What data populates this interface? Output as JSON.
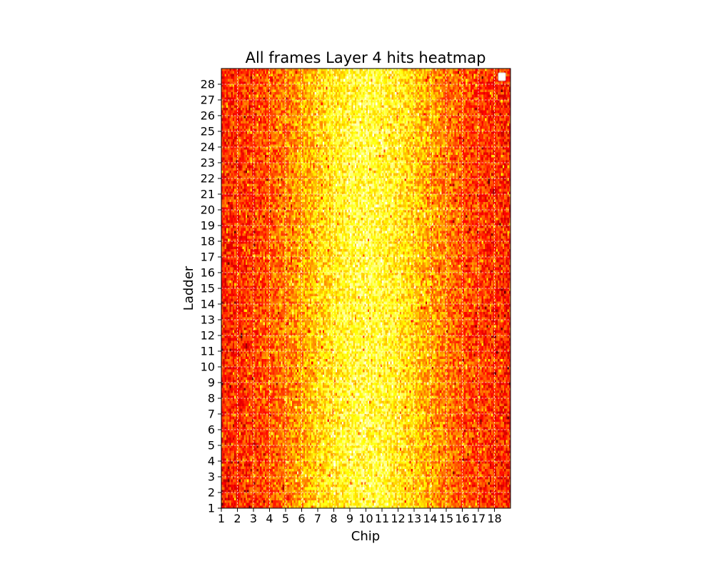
{
  "chart_data": {
    "type": "heatmap",
    "title": "All frames Layer 4 hits heatmap",
    "xlabel": "Chip",
    "ylabel": "Ladder",
    "x_ticks": [
      "1",
      "2",
      "3",
      "4",
      "5",
      "6",
      "7",
      "8",
      "9",
      "10",
      "11",
      "12",
      "13",
      "14",
      "15",
      "16",
      "17",
      "18"
    ],
    "y_ticks": [
      "1",
      "2",
      "3",
      "4",
      "5",
      "6",
      "7",
      "8",
      "9",
      "10",
      "11",
      "12",
      "13",
      "14",
      "15",
      "16",
      "17",
      "18",
      "19",
      "20",
      "21",
      "22",
      "23",
      "24",
      "25",
      "26",
      "27",
      "28"
    ],
    "xlim": [
      1,
      19
    ],
    "ylim": [
      1,
      29
    ],
    "grid": true,
    "colormap": "hot",
    "legend_placement": "top-right",
    "pixels_per_chip": 10,
    "rows_per_ladder": 6,
    "hit_profile": {
      "peak_chip": 10,
      "relative_intensity_center": 0.8,
      "relative_intensity_edges": 0.4
    }
  },
  "colors": {
    "grid": "#ffffff",
    "frame": "#000000",
    "background": "#ffffff",
    "legend_box": "#ffffff",
    "legend_edge": "#cccccc"
  }
}
